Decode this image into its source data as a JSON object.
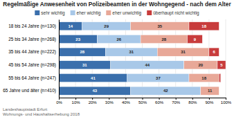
{
  "chart_data": {
    "type": "bar",
    "orientation": "horizontal",
    "stacked": true,
    "title": "Regelmäßige Anwesenheit von Polizeibeamten in der Wohngegend - nach dem Alter",
    "categories": [
      "18 bis 24 Jahre (n=130)",
      "25 bis 34 Jahre (n=268)",
      "35 bis 44 Jahre (n=222)",
      "45 bis 54 Jahre (n=298)",
      "55 bis 64 Jahre (n=247)",
      "65 Jahre und älter (n=410)"
    ],
    "series": [
      {
        "name": "sehr wichtig",
        "color": "#3a6fac",
        "values": [
          14,
          23,
          28,
          31,
          41,
          43
        ]
      },
      {
        "name": "eher wichtig",
        "color": "#a8c8e8",
        "values": [
          29,
          26,
          31,
          44,
          37,
          42
        ]
      },
      {
        "name": "eher unwichtig",
        "color": "#e8a898",
        "values": [
          35,
          28,
          31,
          20,
          18,
          11
        ]
      },
      {
        "name": "überhaupt nicht wichtig",
        "color": "#c83c3c",
        "values": [
          18,
          9,
          6,
          5,
          1,
          0
        ]
      }
    ],
    "xlim": [
      0,
      100
    ],
    "xticks": [
      {
        "value": 0,
        "label": "0%"
      },
      {
        "value": 10,
        "label": "10%"
      },
      {
        "value": 20,
        "label": "20%"
      },
      {
        "value": 30,
        "label": "30%"
      },
      {
        "value": 40,
        "label": "40%"
      },
      {
        "value": 50,
        "label": "50%"
      },
      {
        "value": 60,
        "label": "60%"
      },
      {
        "value": 70,
        "label": "70%"
      },
      {
        "value": 80,
        "label": "80%"
      },
      {
        "value": 90,
        "label": "90%"
      },
      {
        "value": 100,
        "label": "100%"
      }
    ],
    "grid": true,
    "legend": "top",
    "data_labels": true,
    "annotations": [
      "Landeshauptstadt Erfurt",
      "Wohnungs- und Haushaltserhebung 2018"
    ]
  }
}
